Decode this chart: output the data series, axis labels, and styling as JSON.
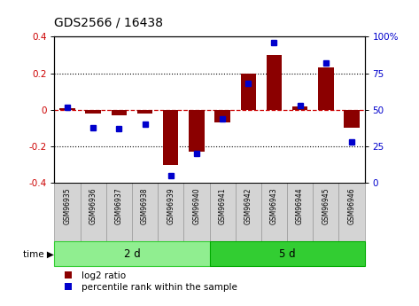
{
  "title": "GDS2566 / 16438",
  "samples": [
    "GSM96935",
    "GSM96936",
    "GSM96937",
    "GSM96938",
    "GSM96939",
    "GSM96940",
    "GSM96941",
    "GSM96942",
    "GSM96943",
    "GSM96944",
    "GSM96945",
    "GSM96946"
  ],
  "log2_ratio": [
    0.01,
    -0.02,
    -0.03,
    -0.02,
    -0.3,
    -0.23,
    -0.07,
    0.2,
    0.3,
    0.02,
    0.23,
    -0.1
  ],
  "percentile_rank": [
    52,
    38,
    37,
    40,
    5,
    20,
    44,
    68,
    96,
    53,
    82,
    28
  ],
  "groups": [
    {
      "label": "2 d",
      "start": 0,
      "end": 6,
      "color": "#90ee90",
      "edgecolor": "#32cd32"
    },
    {
      "label": "5 d",
      "start": 6,
      "end": 12,
      "color": "#32cd32",
      "edgecolor": "#00aa00"
    }
  ],
  "bar_color": "#8b0000",
  "dot_color": "#0000cc",
  "ylim": [
    -0.4,
    0.4
  ],
  "y2lim": [
    0,
    100
  ],
  "yticks": [
    -0.4,
    -0.2,
    0.0,
    0.2,
    0.4
  ],
  "y2ticks": [
    0,
    25,
    50,
    75,
    100
  ],
  "hline_color": "#cc0000",
  "dotted_color": "black",
  "tick_label_color_left": "#cc0000",
  "tick_label_color_right": "#0000cc",
  "legend_log2": "log2 ratio",
  "legend_pct": "percentile rank within the sample",
  "sample_box_color": "#d4d4d4",
  "sample_box_edge": "#999999"
}
